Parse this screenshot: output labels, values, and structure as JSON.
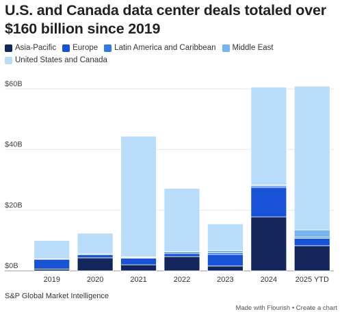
{
  "title": "U.S. and Canada data center deals totaled over $160 billion since 2019",
  "source": "S&P Global Market Intelligence",
  "footer": {
    "made_with": "Made with Flourish",
    "separator": "•",
    "create": "Create a chart"
  },
  "chart_data": {
    "type": "bar",
    "stacked": true,
    "categories": [
      "2019",
      "2020",
      "2021",
      "2022",
      "2023",
      "2024",
      "2025 YTD"
    ],
    "ylim": [
      0,
      60
    ],
    "yticks": [
      0,
      20,
      40,
      60
    ],
    "ytick_labels": [
      "$0B",
      "$20B",
      "$40B",
      "$60B"
    ],
    "grid": true,
    "legend_position": "top",
    "series": [
      {
        "name": "Asia-Pacific",
        "color": "#13275c",
        "values": [
          0.6,
          4.3,
          2.0,
          4.7,
          1.6,
          17.8,
          8.3
        ]
      },
      {
        "name": "Europe",
        "color": "#1852d6",
        "values": [
          3.2,
          1.0,
          2.2,
          1.0,
          3.8,
          9.7,
          2.4
        ]
      },
      {
        "name": "Latin America and Caribbean",
        "color": "#3578e5",
        "values": [
          0.1,
          0.3,
          0.2,
          0.5,
          0.6,
          0.5,
          0.4
        ]
      },
      {
        "name": "Middle East",
        "color": "#76b4ee",
        "values": [
          0.1,
          0.1,
          0.2,
          0.1,
          0.7,
          0.3,
          2.4
        ]
      },
      {
        "name": "United States and Canada",
        "color": "#b8dcfa",
        "values": [
          6.0,
          6.7,
          39.8,
          20.9,
          8.8,
          32.3,
          47.4
        ]
      }
    ]
  }
}
